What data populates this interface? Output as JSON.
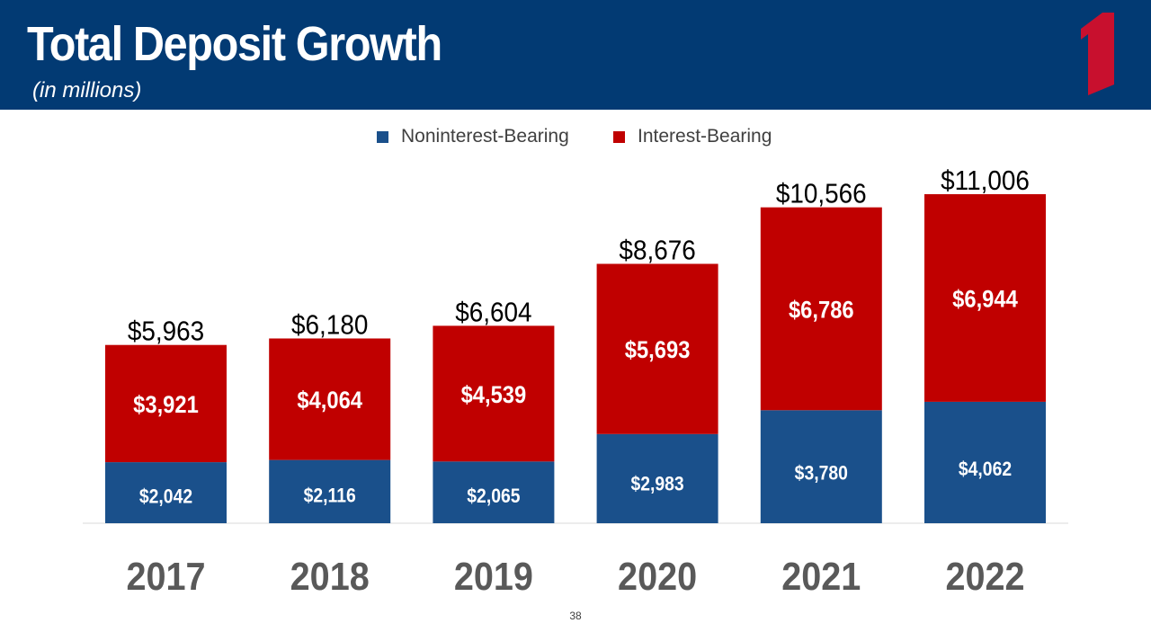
{
  "slide": {
    "title": "Total Deposit Growth",
    "subtitle": "(in millions)",
    "page_number": "38",
    "colors": {
      "header_background": "#023a73",
      "noninterest_bearing": "#1a508b",
      "interest_bearing": "#c00000",
      "logo": "#c8102e"
    }
  },
  "chart_data": {
    "type": "bar",
    "stacked": true,
    "title": "Total Deposit Growth",
    "subtitle": "(in millions)",
    "categories": [
      "2017",
      "2018",
      "2019",
      "2020",
      "2021",
      "2022"
    ],
    "series": [
      {
        "name": "Noninterest-Bearing",
        "color": "#1a508b",
        "values": [
          2042,
          2116,
          2065,
          2983,
          3780,
          4062
        ],
        "labels": [
          "$2,042",
          "$2,116",
          "$2,065",
          "$2,983",
          "$3,780",
          "$4,062"
        ]
      },
      {
        "name": "Interest-Bearing",
        "color": "#c00000",
        "values": [
          3921,
          4064,
          4539,
          5693,
          6786,
          6944
        ],
        "labels": [
          "$3,921",
          "$4,064",
          "$4,539",
          "$5,693",
          "$6,786",
          "$6,944"
        ]
      }
    ],
    "totals": [
      5963,
      6180,
      6604,
      8676,
      10566,
      11006
    ],
    "total_labels": [
      "$5,963",
      "$6,180",
      "$6,604",
      "$8,676",
      "$10,566",
      "$11,006"
    ],
    "ylim": [
      0,
      11006
    ],
    "grid": false,
    "legend_position": "top-center"
  }
}
